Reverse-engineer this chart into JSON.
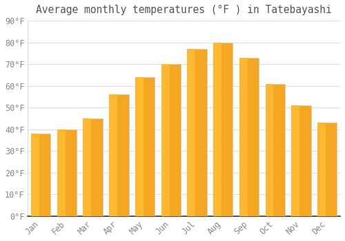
{
  "title": "Average monthly temperatures (°F ) in Tatebayashi",
  "months": [
    "Jan",
    "Feb",
    "Mar",
    "Apr",
    "May",
    "Jun",
    "Jul",
    "Aug",
    "Sep",
    "Oct",
    "Nov",
    "Dec"
  ],
  "values": [
    38,
    40,
    45,
    56,
    64,
    70,
    77,
    80,
    73,
    61,
    51,
    43
  ],
  "bar_color_left": "#FFB830",
  "bar_color_right": "#F5A623",
  "bar_color_edge": "#cccccc",
  "ylim": [
    0,
    90
  ],
  "ytick_step": 10,
  "background_color": "#ffffff",
  "plot_bg_color": "#ffffff",
  "grid_color": "#dddddd",
  "title_fontsize": 10.5,
  "tick_fontsize": 8.5,
  "font_family": "monospace",
  "tick_color": "#888888",
  "title_color": "#555555",
  "spine_color": "#333333",
  "bar_width": 0.75
}
